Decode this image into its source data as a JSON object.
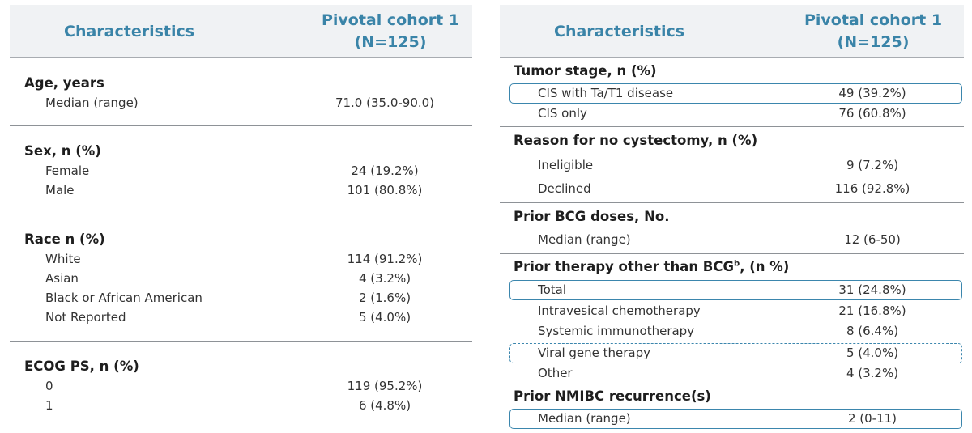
{
  "left_table": {
    "header": {
      "characteristics": "Characteristics",
      "cohort_line1": "Pivotal cohort 1",
      "cohort_line2": "(N=125)"
    },
    "sections": [
      {
        "title": "Age, years",
        "rows": [
          {
            "label": "Median (range)",
            "value": "71.0 (35.0-90.0)"
          }
        ]
      },
      {
        "title": "Sex, n (%)",
        "rows": [
          {
            "label": "Female",
            "value": "24 (19.2%)"
          },
          {
            "label": "Male",
            "value": "101 (80.8%)"
          }
        ]
      },
      {
        "title": "Race n (%)",
        "rows": [
          {
            "label": "White",
            "value": "114 (91.2%)"
          },
          {
            "label": "Asian",
            "value": "4 (3.2%)"
          },
          {
            "label": "Black or African American",
            "value": "2 (1.6%)"
          },
          {
            "label": "Not Reported",
            "value": "5 (4.0%)"
          }
        ]
      },
      {
        "title": "ECOG PS, n (%)",
        "rows": [
          {
            "label": "0",
            "value": "119 (95.2%)"
          },
          {
            "label": "1",
            "value": "6 (4.8%)"
          }
        ]
      }
    ]
  },
  "right_table": {
    "header": {
      "characteristics": "Characteristics",
      "cohort_line1": "Pivotal cohort 1",
      "cohort_line2": "(N=125)"
    },
    "sections": [
      {
        "title": "Tumor stage, n (%)",
        "rows": [
          {
            "label": "CIS with Ta/T1 disease",
            "value": "49 (39.2%)"
          },
          {
            "label": "CIS only",
            "value": "76 (60.8%)"
          }
        ]
      },
      {
        "title": "Reason for no cystectomy, n (%)",
        "rows": [
          {
            "label": "Ineligible",
            "value": "9 (7.2%)"
          },
          {
            "label": "Declined",
            "value": "116 (92.8%)"
          }
        ]
      },
      {
        "title": "Prior BCG doses, No.",
        "rows": [
          {
            "label": "Median (range)",
            "value": "12 (6-50)"
          }
        ]
      },
      {
        "title_main": "Prior therapy other than BCG",
        "title_sup": "b",
        "title_tail": ", (n %)",
        "rows": [
          {
            "label": "Total",
            "value": "31 (24.8%)"
          },
          {
            "label": "Intravesical chemotherapy",
            "value": "21 (16.8%)"
          },
          {
            "label": "Systemic immunotherapy",
            "value": "8 (6.4%)"
          },
          {
            "label": "Viral gene therapy",
            "value": "5 (4.0%)"
          },
          {
            "label": "Other",
            "value": "4 (3.2%)"
          }
        ]
      },
      {
        "title": "Prior NMIBC recurrence(s)",
        "rows": [
          {
            "label": "Median (range)",
            "value": "2 (0-11)"
          }
        ]
      }
    ]
  },
  "colors": {
    "header_text": "#3a84a8",
    "highlight_box": "#3b86ad",
    "header_bg": "#f0f2f4"
  }
}
